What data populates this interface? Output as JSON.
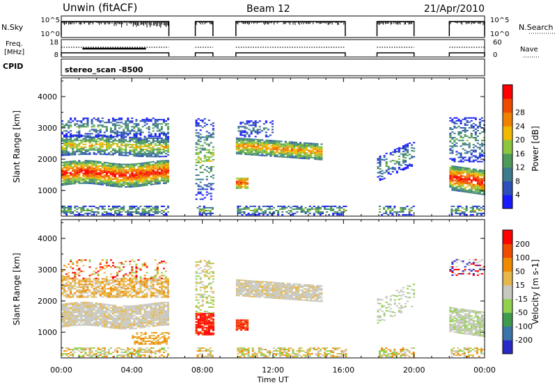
{
  "header": {
    "radar_title": "Unwin (fitACF)",
    "beam_label": "Beam 12",
    "date_label": "21/Apr/2010",
    "cpid_label": "CPID",
    "cpid_value": "stereo_scan -8500"
  },
  "strip_labels": {
    "nsky": "N.Sky",
    "nsky_hi": "10^5",
    "nsky_lo": "10^0",
    "nsearch": "N.Search",
    "nsearch_hi": "10^5",
    "nsearch_lo": "10^0",
    "freq_line1": "Freq.",
    "freq_line2": "[MHz]",
    "freq_hi": "18",
    "freq_lo": "8",
    "nave": "Nave",
    "nave_hi": "60",
    "nave_lo": "0"
  },
  "colors": {
    "power_scale": [
      "#1a1aff",
      "#2d4fb8",
      "#3d7a8c",
      "#4e9a5a",
      "#8cc63f",
      "#f0b800",
      "#f08000",
      "#f04a00",
      "#ff0000"
    ],
    "velocity_scale": [
      "#2929c8",
      "#3b74a8",
      "#3f9a4e",
      "#92d050",
      "#c8c8c0",
      "#e6b84a",
      "#f08a00",
      "#f04c00",
      "#ff0000"
    ],
    "ground_scatter": "#a0a0a0"
  },
  "chart_data": [
    {
      "type": "heatmap",
      "panel": "power",
      "ylabel": "Slant Range [km]",
      "xlabel": "Time UT",
      "x_ticks": [
        "00:00",
        "04:00",
        "08:00",
        "12:00",
        "16:00",
        "20:00",
        "00:00"
      ],
      "x_range_hours": [
        0,
        24
      ],
      "y_ticks": [
        1000,
        2000,
        3000,
        4000
      ],
      "ylim": [
        180,
        4600
      ],
      "colorbar_label": "Power [dB]",
      "colorbar_ticks": [
        "4",
        "8",
        "12",
        "16",
        "20",
        "24",
        "28"
      ],
      "colorbar_range": [
        0,
        32
      ],
      "data_intervals_hours": [
        [
          0.0,
          6.1
        ],
        [
          7.6,
          8.6
        ],
        [
          9.9,
          16.1
        ],
        [
          17.9,
          20.0
        ],
        [
          22.0,
          24.0
        ]
      ]
    },
    {
      "type": "heatmap",
      "panel": "velocity",
      "ylabel": "Slant Range [km]",
      "xlabel": "Time UT",
      "x_ticks": [
        "00:00",
        "04:00",
        "08:00",
        "12:00",
        "16:00",
        "20:00",
        "00:00"
      ],
      "x_range_hours": [
        0,
        24
      ],
      "y_ticks": [
        1000,
        2000,
        3000,
        4000
      ],
      "ylim": [
        180,
        4600
      ],
      "colorbar_label": "Velocity [m s-1]",
      "colorbar_ticks": [
        "200",
        "100",
        "50",
        "15",
        "-15",
        "-50",
        "-100",
        "-200"
      ],
      "colorbar_range": [
        -250,
        250
      ],
      "data_intervals_hours": [
        [
          0.0,
          6.1
        ],
        [
          7.6,
          8.6
        ],
        [
          9.9,
          16.1
        ],
        [
          17.9,
          20.0
        ],
        [
          22.0,
          24.0
        ]
      ]
    }
  ]
}
